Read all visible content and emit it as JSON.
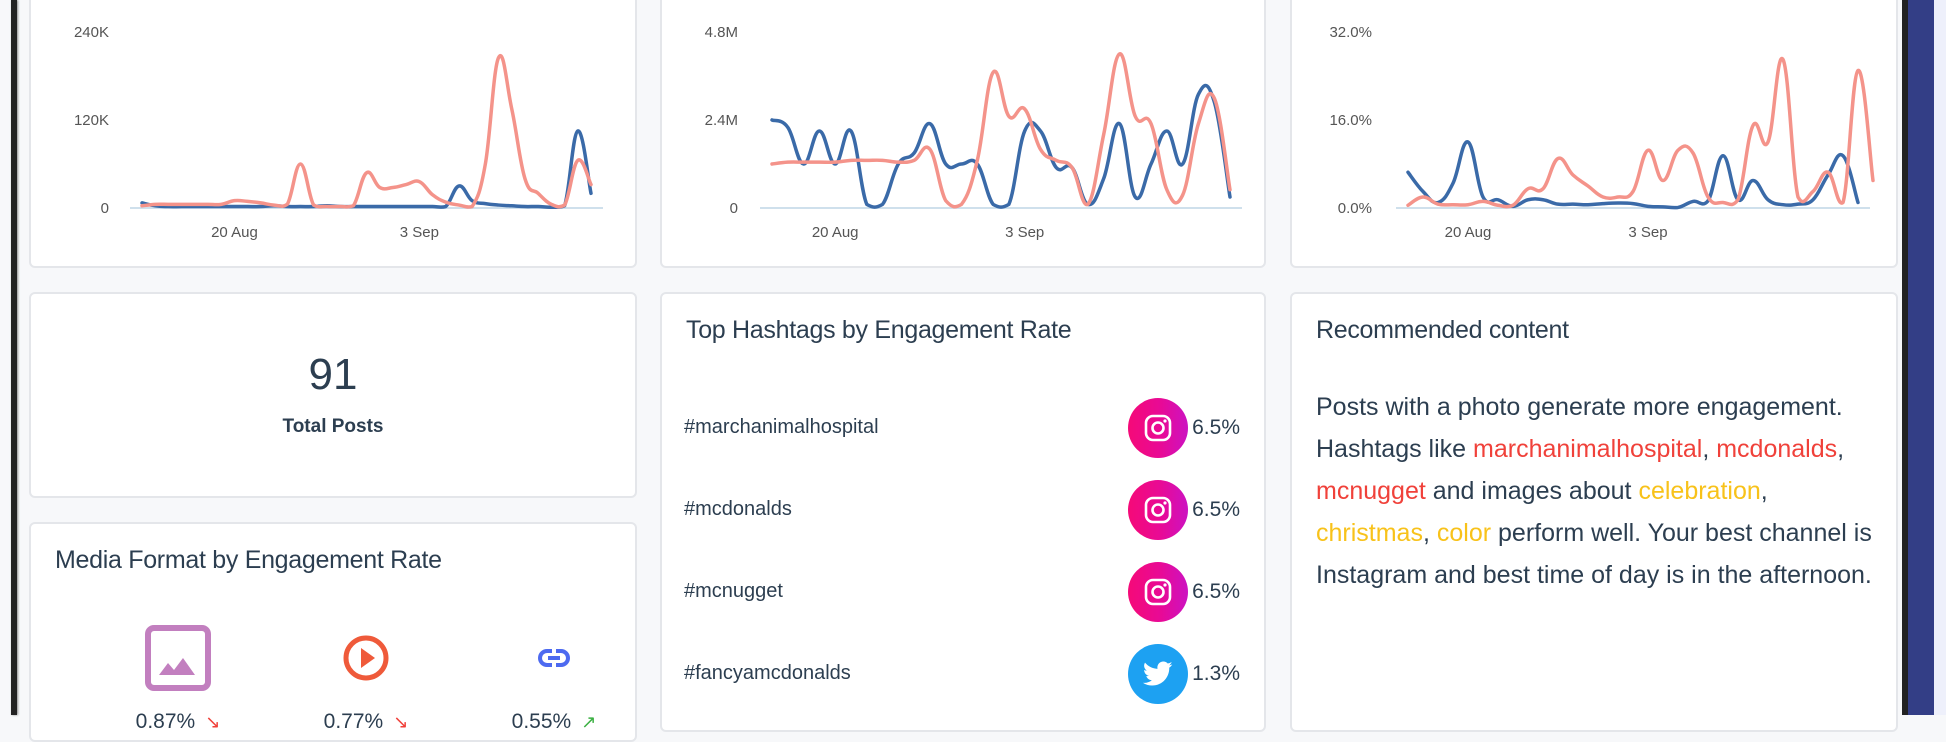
{
  "colors": {
    "series_blue": "#3a6aa8",
    "series_salmon": "#f4938a",
    "instagram": "#f50a78",
    "twitter": "#1da1f2",
    "highlight_red": "#f0413a",
    "highlight_yellow": "#f8c21a",
    "photo_icon": "#c27fbf",
    "video_icon": "#ef5a3a",
    "link_icon": "#4d6af0",
    "trend_down": "#f0413a",
    "trend_up": "#3cb043"
  },
  "chart_data": [
    {
      "type": "line",
      "title": "",
      "xlabel": "",
      "ylabel": "",
      "ylim": [
        0,
        240000
      ],
      "yticks": [
        "0",
        "120K",
        "240K"
      ],
      "xticks": [
        "20 Aug",
        "3 Sep"
      ],
      "xtick_index": [
        7,
        21
      ],
      "grid": false,
      "series": [
        {
          "name": "series-blue",
          "color": "#3a6aa8",
          "values": [
            7000,
            3000,
            2000,
            2000,
            2000,
            2000,
            2000,
            2000,
            2000,
            2000,
            3000,
            2000,
            2000,
            2000,
            3000,
            2000,
            2000,
            2000,
            2000,
            2000,
            2000,
            2000,
            2000,
            2000,
            30000,
            10000,
            6000,
            4000,
            3000,
            2000,
            2000,
            1000,
            3000,
            105000,
            20000
          ]
        },
        {
          "name": "series-salmon",
          "color": "#f4938a",
          "values": [
            3000,
            5000,
            5000,
            5000,
            5000,
            5000,
            5000,
            10000,
            9000,
            7000,
            4000,
            5000,
            60000,
            4000,
            2000,
            2000,
            3000,
            48000,
            28000,
            28000,
            32000,
            36000,
            18000,
            8000,
            4000,
            2000,
            60000,
            205000,
            135000,
            40000,
            20000,
            5000,
            4000,
            65000,
            32000
          ]
        }
      ]
    },
    {
      "type": "line",
      "title": "",
      "xlabel": "",
      "ylabel": "",
      "ylim": [
        0,
        4800000
      ],
      "yticks": [
        "0",
        "2.4M",
        "4.8M"
      ],
      "xticks": [
        "20 Aug",
        "3 Sep"
      ],
      "xtick_index": [
        4,
        16
      ],
      "grid": false,
      "series": [
        {
          "name": "series-blue",
          "color": "#3a6aa8",
          "values": [
            2400000,
            2200000,
            1200000,
            2100000,
            1200000,
            2100000,
            100000,
            100000,
            1200000,
            1500000,
            2300000,
            1200000,
            1200000,
            1200000,
            100000,
            100000,
            2100000,
            2100000,
            1100000,
            1100000,
            100000,
            800000,
            2300000,
            300000,
            1200000,
            2100000,
            1200000,
            3100000,
            2900000,
            300000
          ]
        },
        {
          "name": "series-salmon",
          "color": "#f4938a",
          "values": [
            1200000,
            1250000,
            1250000,
            1250000,
            1250000,
            1300000,
            1300000,
            1300000,
            1250000,
            1300000,
            1600000,
            200000,
            100000,
            1300000,
            3700000,
            2500000,
            2700000,
            1600000,
            1300000,
            1100000,
            100000,
            2000000,
            4200000,
            2500000,
            2300000,
            500000,
            350000,
            2300000,
            3000000,
            500000
          ]
        }
      ]
    },
    {
      "type": "line",
      "title": "",
      "xlabel": "",
      "ylabel": "",
      "ylim": [
        0,
        32
      ],
      "yticks": [
        "0.0%",
        "16.0%",
        "32.0%"
      ],
      "xticks": [
        "20 Aug",
        "3 Sep"
      ],
      "xtick_index": [
        4,
        16
      ],
      "grid": false,
      "series": [
        {
          "name": "series-blue",
          "color": "#3a6aa8",
          "values": [
            6.5,
            3,
            1,
            4.5,
            12,
            2,
            1.5,
            0.3,
            1.5,
            1.5,
            0.7,
            0.7,
            0.6,
            0.8,
            0.9,
            0.8,
            0.3,
            0.2,
            0.1,
            1.2,
            1.3,
            9.5,
            1.5,
            5,
            1.5,
            0.6,
            0.7,
            1.5,
            6,
            9.5,
            1
          ]
        },
        {
          "name": "series-salmon",
          "color": "#f4938a",
          "values": [
            0.5,
            2,
            0.7,
            0.6,
            0.6,
            1.2,
            0.5,
            0.5,
            3.5,
            3.5,
            9,
            6,
            4,
            2,
            2,
            3,
            10.5,
            5,
            10.5,
            10,
            2,
            1,
            1.5,
            15,
            12,
            27,
            2,
            3,
            6.5,
            1,
            25,
            5
          ]
        }
      ]
    }
  ],
  "total_posts": {
    "value": "91",
    "label": "Total Posts"
  },
  "media_format": {
    "title": "Media Format by Engagement Rate",
    "items": [
      {
        "icon": "photo-icon",
        "value": "0.87%",
        "trend": "down",
        "trend_glyph": "↘"
      },
      {
        "icon": "video-play-icon",
        "value": "0.77%",
        "trend": "down",
        "trend_glyph": "↘"
      },
      {
        "icon": "link-icon",
        "value": "0.55%",
        "trend": "up",
        "trend_glyph": "↗"
      }
    ]
  },
  "top_hashtags": {
    "title": "Top Hashtags by Engagement Rate",
    "rows": [
      {
        "tag": "#marchanimalhospital",
        "network": "instagram",
        "icon": "instagram-icon",
        "rate": "6.5%"
      },
      {
        "tag": "#mcdonalds",
        "network": "instagram",
        "icon": "instagram-icon",
        "rate": "6.5%"
      },
      {
        "tag": "#mcnugget",
        "network": "instagram",
        "icon": "instagram-icon",
        "rate": "6.5%"
      },
      {
        "tag": "#fancyamcdonalds",
        "network": "twitter",
        "icon": "twitter-icon",
        "rate": "1.3%"
      }
    ]
  },
  "recommended": {
    "title": "Recommended content",
    "parts": [
      {
        "text": "Posts with a photo generate more engagement. Hashtags like ",
        "style": "plain"
      },
      {
        "text": "marchanimalhospital",
        "style": "red"
      },
      {
        "text": ", ",
        "style": "plain"
      },
      {
        "text": "mcdonalds",
        "style": "red"
      },
      {
        "text": ", ",
        "style": "plain"
      },
      {
        "text": "mcnugget",
        "style": "red"
      },
      {
        "text": " and images about ",
        "style": "plain"
      },
      {
        "text": "celebration",
        "style": "yellow"
      },
      {
        "text": ", ",
        "style": "plain"
      },
      {
        "text": "christmas",
        "style": "yellow"
      },
      {
        "text": ", ",
        "style": "plain"
      },
      {
        "text": "color",
        "style": "yellow"
      },
      {
        "text": " perform well. Your best channel is Instagram and best time of day is in the afternoon.",
        "style": "plain"
      }
    ]
  }
}
